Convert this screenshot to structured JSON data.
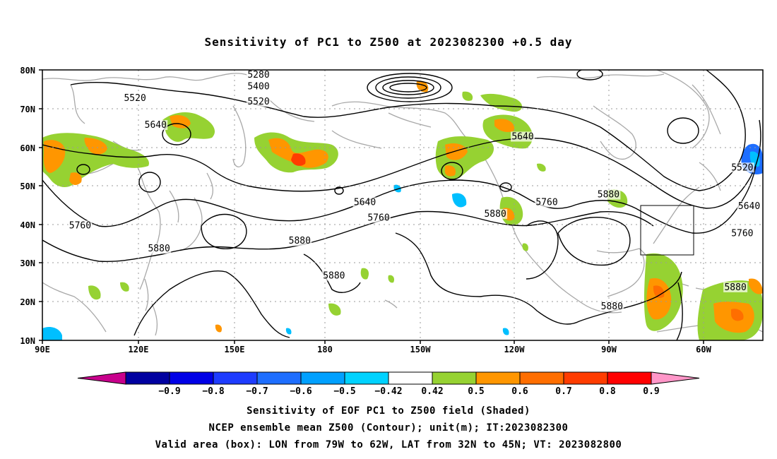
{
  "title": "Sensitivity of PC1 to Z500 at 2023082300 +0.5 day",
  "lat_labels": [
    "80N",
    "70N",
    "60N",
    "50N",
    "40N",
    "30N",
    "20N",
    "10N"
  ],
  "lon_labels": [
    "90E",
    "120E",
    "150E",
    "180",
    "150W",
    "120W",
    "90W",
    "60W"
  ],
  "contour_labels": [
    {
      "text": "5520",
      "lon": 153,
      "lat": 71
    },
    {
      "text": "5280",
      "lon": 153,
      "lat": 78
    },
    {
      "text": "5400",
      "lon": 153,
      "lat": 75
    },
    {
      "text": "5520",
      "lon": 117,
      "lat": 72
    },
    {
      "text": "5640",
      "lon": 123,
      "lat": 65
    },
    {
      "text": "5640",
      "lon": 230,
      "lat": 62
    },
    {
      "text": "5760",
      "lon": 101,
      "lat": 39
    },
    {
      "text": "5640",
      "lon": 184,
      "lat": 45
    },
    {
      "text": "5760",
      "lon": 188,
      "lat": 41
    },
    {
      "text": "5880",
      "lon": 222,
      "lat": 42
    },
    {
      "text": "5760",
      "lon": 237,
      "lat": 45
    },
    {
      "text": "5880",
      "lon": 165,
      "lat": 35
    },
    {
      "text": "5880",
      "lon": 124,
      "lat": 33
    },
    {
      "text": "5880",
      "lon": 175,
      "lat": 26
    },
    {
      "text": "5880",
      "lon": 255,
      "lat": 47
    },
    {
      "text": "5520",
      "lon": 294,
      "lat": 54
    },
    {
      "text": "5640",
      "lon": 296,
      "lat": 44
    },
    {
      "text": "5760",
      "lon": 294,
      "lat": 37
    },
    {
      "text": "5880",
      "lon": 292,
      "lat": 23
    },
    {
      "text": "5880",
      "lon": 256,
      "lat": 18
    }
  ],
  "valid_box": {
    "lon_from": -79,
    "lon_to": -62,
    "lat_from": 32,
    "lat_to": 45
  },
  "colorbar": {
    "labels": [
      "−0.9",
      "−0.8",
      "−0.7",
      "−0.6",
      "−0.5",
      "−0.42",
      "0.42",
      "0.5",
      "0.6",
      "0.7",
      "0.8",
      "0.9"
    ],
    "colors": [
      "#c8008c",
      "#0000a0",
      "#0000e6",
      "#1e3cff",
      "#1e6eff",
      "#00a0ff",
      "#00d2ff",
      "#ffffff",
      "#96d232",
      "#ff9600",
      "#ff6e00",
      "#ff3c00",
      "#ff0000",
      "#ff96c8"
    ]
  },
  "shading_colors": {
    "green": "#96d232",
    "orange": "#ff9600",
    "darkorange": "#ff6e00",
    "red": "#ff3c00",
    "lightblue": "#00bfff",
    "blue": "#1e6eff"
  },
  "footer": {
    "line1": "Sensitivity of EOF PC1 to Z500 field (Shaded)",
    "line2": "NCEP ensemble mean Z500 (Contour); unit(m); IT:2023082300",
    "line3": "Valid area (box): LON from 79W to 62W, LAT from 32N to 45N; VT: 2023082800"
  }
}
